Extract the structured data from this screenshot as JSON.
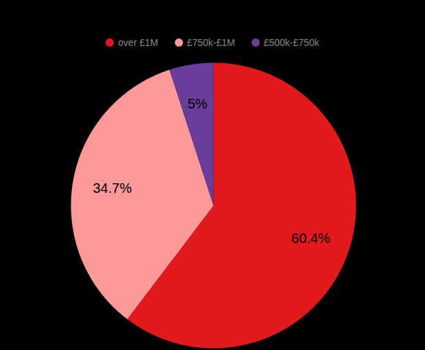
{
  "chart_data": {
    "type": "pie",
    "categories": [
      "over £1M",
      "£750k-£1M",
      "£500k-£750k"
    ],
    "values": [
      60.4,
      34.7,
      5
    ],
    "value_labels": [
      "60.4%",
      "34.7%",
      "5%"
    ],
    "colors": [
      "#e31a1c",
      "#fb9a99",
      "#6a3d9a"
    ],
    "data_labels": true,
    "legend": "top"
  }
}
